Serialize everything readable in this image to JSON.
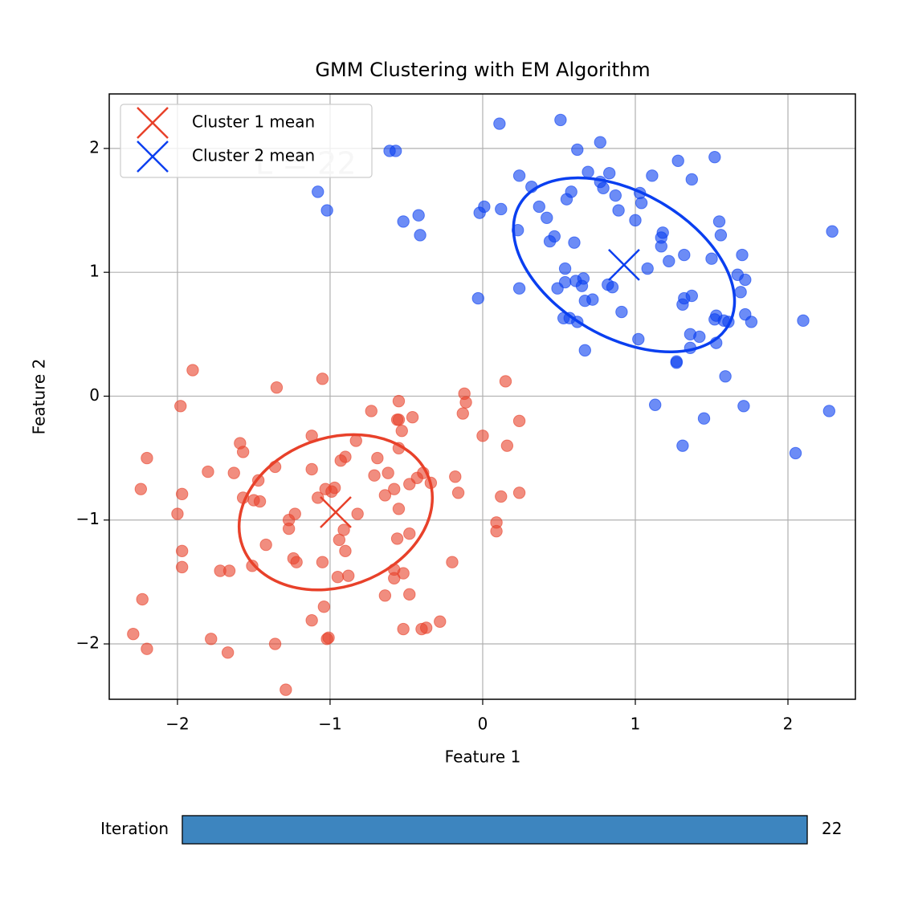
{
  "chart_data": {
    "type": "scatter",
    "title": "GMM Clustering with EM Algorithm",
    "xlabel": "Feature 1",
    "ylabel": "Feature 2",
    "xlim": [
      -2.447,
      2.442
    ],
    "ylim": [
      -2.447,
      2.44
    ],
    "xticks": [
      {
        "value": -2,
        "label": "−2"
      },
      {
        "value": -1,
        "label": "−1"
      },
      0,
      1,
      2
    ],
    "yticks": [
      {
        "value": -2,
        "label": "−2"
      },
      {
        "value": -1,
        "label": "−1"
      },
      0,
      1,
      2
    ],
    "grid": true,
    "legend": "upper left",
    "annotation": "L = 22",
    "points": [
      {
        "color": "#e8412a",
        "x": [
          -1.9,
          -1.05,
          -1.35,
          -1.98,
          -0.55,
          -0.12,
          -0.11,
          0.15,
          -0.73,
          -0.56,
          -0.55,
          -0.46,
          -0.53,
          -0.13,
          0.24,
          -2.2,
          -1.59,
          -1.57,
          -1.12,
          -1.63,
          -1.8,
          -0.83,
          -0.55,
          -0.9,
          -0.93,
          -0.69,
          0.0,
          0.16,
          -0.62,
          -0.71,
          -1.36,
          -1.12,
          -1.47,
          -2.24,
          -1.97,
          -1.57,
          -1.5,
          -1.46,
          -1.03,
          -0.97,
          -0.99,
          -1.08,
          -0.48,
          -0.43,
          -0.39,
          -0.34,
          -0.58,
          -0.64,
          -0.55,
          -0.18,
          -0.16,
          0.12,
          0.24,
          -2.0,
          -0.82,
          -1.23,
          -1.27,
          -1.27,
          -0.91,
          -0.94,
          -0.56,
          -0.48,
          0.09,
          0.09,
          -1.97,
          -1.97,
          -1.42,
          -1.24,
          -1.22,
          -1.05,
          -0.9,
          -1.51,
          -1.72,
          -1.66,
          -0.95,
          -0.88,
          -0.58,
          -0.58,
          -0.52,
          -0.2,
          -0.48,
          -0.64,
          -2.23,
          -1.04,
          -1.12,
          -0.52,
          -0.4,
          -0.37,
          -0.28,
          -2.29,
          -2.2,
          -1.78,
          -1.67,
          -1.36,
          -1.01,
          -1.02,
          -1.29
        ],
        "y": [
          0.21,
          0.14,
          0.07,
          -0.08,
          -0.04,
          0.02,
          -0.05,
          0.12,
          -0.12,
          -0.19,
          -0.19,
          -0.17,
          -0.28,
          -0.14,
          -0.2,
          -0.5,
          -0.38,
          -0.45,
          -0.32,
          -0.62,
          -0.61,
          -0.36,
          -0.42,
          -0.49,
          -0.52,
          -0.5,
          -0.32,
          -0.4,
          -0.62,
          -0.64,
          -0.57,
          -0.59,
          -0.68,
          -0.75,
          -0.79,
          -0.82,
          -0.84,
          -0.85,
          -0.75,
          -0.74,
          -0.77,
          -0.82,
          -0.71,
          -0.66,
          -0.62,
          -0.7,
          -0.75,
          -0.8,
          -0.91,
          -0.65,
          -0.78,
          -0.81,
          -0.78,
          -0.95,
          -0.95,
          -0.95,
          -1.0,
          -1.07,
          -1.08,
          -1.16,
          -1.15,
          -1.11,
          -1.02,
          -1.09,
          -1.25,
          -1.38,
          -1.2,
          -1.31,
          -1.34,
          -1.34,
          -1.25,
          -1.37,
          -1.41,
          -1.41,
          -1.46,
          -1.45,
          -1.4,
          -1.47,
          -1.43,
          -1.34,
          -1.6,
          -1.61,
          -1.64,
          -1.7,
          -1.81,
          -1.88,
          -1.88,
          -1.87,
          -1.82,
          -1.92,
          -2.04,
          -1.96,
          -2.07,
          -2.0,
          -1.95,
          -1.96,
          -2.37
        ]
      },
      {
        "color": "#0a3ff0",
        "x": [
          0.11,
          0.51,
          -0.61,
          -0.57,
          0.62,
          0.77,
          1.52,
          1.28,
          -1.08,
          -1.02,
          -0.52,
          -0.42,
          -0.41,
          -0.02,
          0.01,
          0.12,
          0.24,
          0.32,
          0.37,
          0.42,
          0.44,
          0.47,
          0.23,
          0.54,
          0.58,
          0.55,
          0.6,
          0.69,
          0.77,
          0.79,
          0.83,
          0.87,
          0.89,
          1.03,
          1.04,
          1.0,
          1.08,
          1.11,
          1.17,
          1.18,
          1.17,
          1.22,
          1.32,
          1.37,
          1.55,
          1.56,
          1.5,
          1.7,
          1.72,
          1.67,
          1.69,
          1.72,
          1.76,
          1.61,
          1.58,
          1.53,
          1.52,
          1.53,
          1.42,
          1.36,
          1.36,
          1.31,
          1.32,
          1.37,
          1.27,
          1.27,
          1.59,
          1.71,
          1.45,
          1.31,
          1.13,
          1.02,
          0.91,
          0.85,
          0.82,
          0.72,
          0.67,
          0.65,
          0.66,
          0.61,
          0.57,
          0.53,
          0.54,
          0.49,
          0.24,
          -0.03,
          0.67,
          0.62,
          2.05,
          2.27,
          2.1,
          2.29
        ],
        "y": [
          2.2,
          2.23,
          1.98,
          1.98,
          1.99,
          2.05,
          1.93,
          1.9,
          1.65,
          1.5,
          1.41,
          1.46,
          1.3,
          1.48,
          1.53,
          1.51,
          1.78,
          1.69,
          1.53,
          1.44,
          1.25,
          1.29,
          1.34,
          1.03,
          1.65,
          1.59,
          1.24,
          1.81,
          1.73,
          1.68,
          1.8,
          1.62,
          1.5,
          1.64,
          1.56,
          1.42,
          1.03,
          1.78,
          1.28,
          1.32,
          1.21,
          1.09,
          1.14,
          1.75,
          1.41,
          1.3,
          1.11,
          1.14,
          0.94,
          0.98,
          0.84,
          0.66,
          0.6,
          0.6,
          0.61,
          0.65,
          0.62,
          0.43,
          0.48,
          0.5,
          0.39,
          0.74,
          0.79,
          0.81,
          0.27,
          0.28,
          0.16,
          -0.08,
          -0.18,
          -0.4,
          -0.07,
          0.46,
          0.68,
          0.88,
          0.9,
          0.78,
          0.77,
          0.89,
          0.95,
          0.93,
          0.63,
          0.63,
          0.92,
          0.87,
          0.87,
          0.79,
          0.37,
          0.6,
          -0.46,
          -0.12,
          0.61,
          1.33
        ]
      }
    ],
    "means": [
      {
        "name": "Cluster 1 mean",
        "color": "#e8412a",
        "x": -0.963,
        "y": -0.937,
        "ellipse": {
          "width": 1.3,
          "height": 1.2,
          "angle": 20
        }
      },
      {
        "name": "Cluster 2 mean",
        "color": "#0a3ff0",
        "x": 0.926,
        "y": 1.06,
        "ellipse": {
          "width": 1.58,
          "height": 1.17,
          "angle": -30
        }
      }
    ],
    "slider": {
      "label": "Iteration",
      "min": 0,
      "max": 22,
      "value": 22,
      "color": "#3d85bf"
    }
  }
}
